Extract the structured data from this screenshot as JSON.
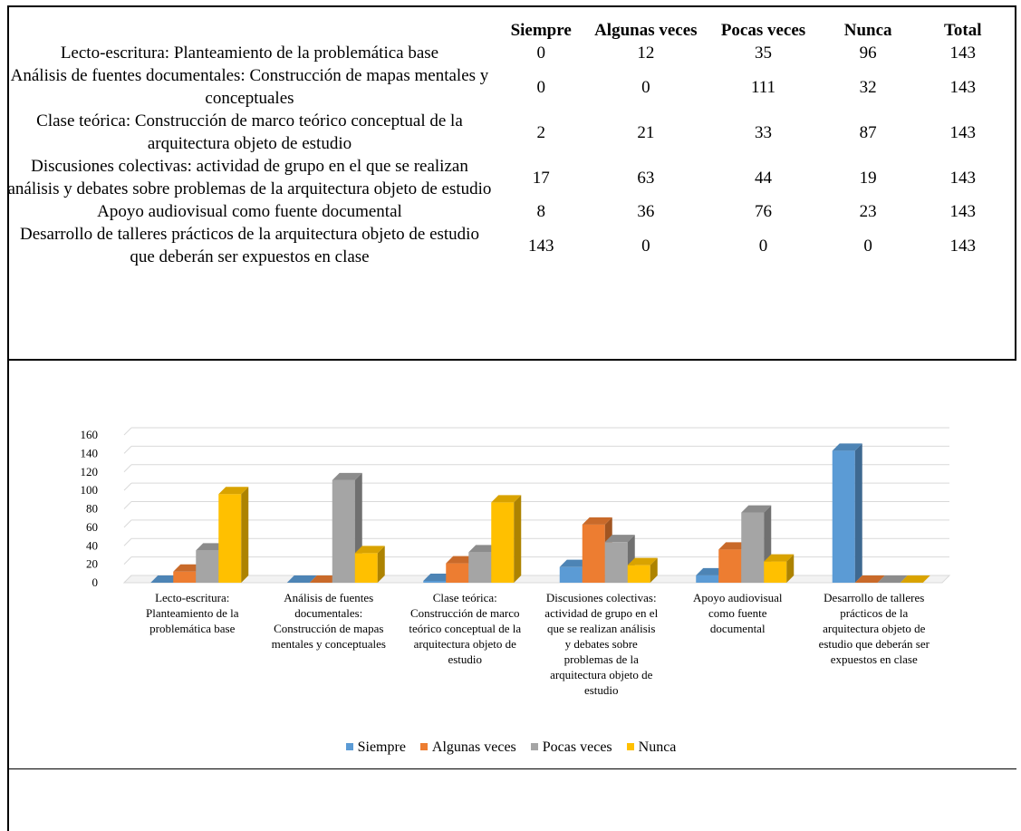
{
  "table": {
    "headers": [
      "",
      "Siempre",
      "Algunas veces",
      "Pocas veces",
      "Nunca",
      "Total"
    ],
    "rows": [
      {
        "label": "Lecto-escritura: Planteamiento de la problemática base",
        "siempre": "0",
        "algunas": "12",
        "pocas": "35",
        "nunca": "96",
        "total": "143"
      },
      {
        "label": "Análisis de fuentes documentales: Construcción de mapas mentales y conceptuales",
        "siempre": "0",
        "algunas": "0",
        "pocas": "111",
        "nunca": "32",
        "total": "143"
      },
      {
        "label": "Clase teórica: Construcción de marco teórico conceptual de la arquitectura objeto de estudio",
        "siempre": "2",
        "algunas": "21",
        "pocas": "33",
        "nunca": "87",
        "total": "143"
      },
      {
        "label": "Discusiones colectivas: actividad de grupo en el que se realizan análisis y debates sobre problemas de la arquitectura objeto de estudio",
        "siempre": "17",
        "algunas": "63",
        "pocas": "44",
        "nunca": "19",
        "total": "143"
      },
      {
        "label": "Apoyo audiovisual como fuente documental",
        "siempre": "8",
        "algunas": "36",
        "pocas": "76",
        "nunca": "23",
        "total": "143"
      },
      {
        "label": "Desarrollo de talleres prácticos de la arquitectura objeto de estudio que deberán ser expuestos en clase",
        "siempre": "143",
        "algunas": "0",
        "pocas": "0",
        "nunca": "0",
        "total": "143"
      }
    ]
  },
  "chart_data": {
    "type": "bar",
    "style": "3d-clustered-column",
    "categories": [
      [
        "Lecto-escritura:",
        "Planteamiento de la",
        "problemática base"
      ],
      [
        "Análisis de fuentes",
        "documentales:",
        "Construcción de mapas",
        "mentales y conceptuales"
      ],
      [
        "Clase teórica:",
        "Construcción de marco",
        "teórico conceptual de la",
        "arquitectura objeto de",
        "estudio"
      ],
      [
        "Discusiones colectivas:",
        "actividad de grupo en el",
        "que se realizan análisis",
        "y debates sobre",
        "problemas de la",
        "arquitectura objeto de",
        "estudio"
      ],
      [
        "Apoyo audiovisual",
        "como fuente",
        "documental"
      ],
      [
        "Desarrollo de talleres",
        "prácticos de la",
        "arquitectura objeto de",
        "estudio que deberán ser",
        "expuestos en clase"
      ]
    ],
    "series": [
      {
        "name": "Siempre",
        "color": "#5b9bd5",
        "values": [
          0,
          0,
          2,
          17,
          8,
          143
        ]
      },
      {
        "name": "Algunas veces",
        "color": "#ed7d31",
        "values": [
          12,
          0,
          21,
          63,
          36,
          0
        ]
      },
      {
        "name": "Pocas veces",
        "color": "#a5a5a5",
        "values": [
          35,
          111,
          33,
          44,
          76,
          0
        ]
      },
      {
        "name": "Nunca",
        "color": "#ffc000",
        "values": [
          96,
          32,
          87,
          19,
          23,
          0
        ]
      }
    ],
    "ylim": [
      0,
      160
    ],
    "yticks": [
      0,
      20,
      40,
      60,
      80,
      100,
      120,
      140,
      160
    ],
    "grid": true,
    "legend": "bottom"
  }
}
